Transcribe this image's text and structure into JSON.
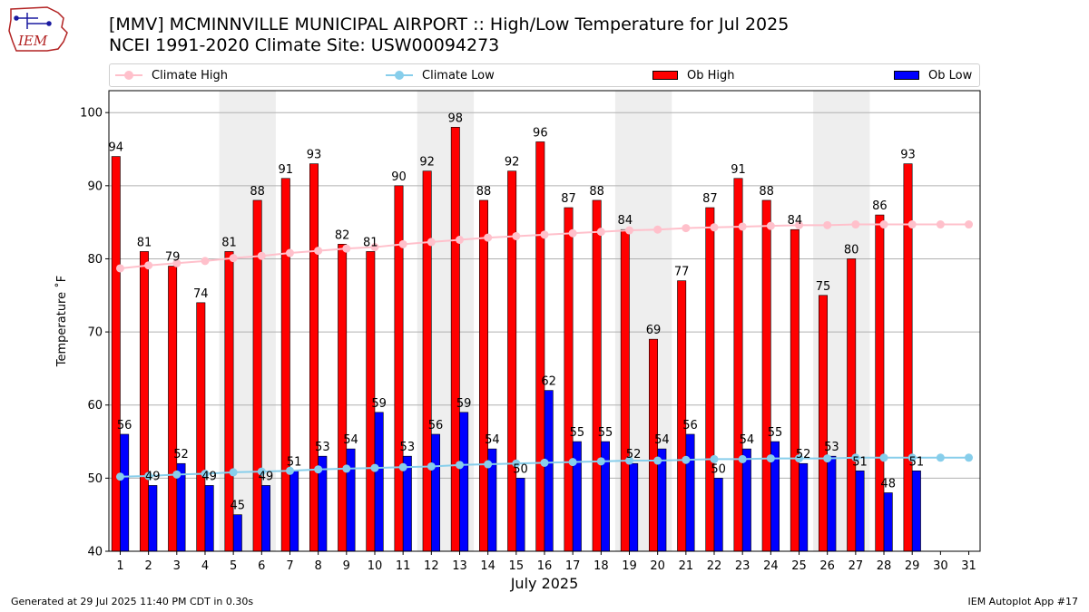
{
  "header": {
    "logo_text": "IEM",
    "title_line1": "[MMV] MCMINNVILLE MUNICIPAL AIRPORT :: High/Low Temperature for Jul 2025",
    "title_line2": "NCEI 1991-2020 Climate Site: USW00094273"
  },
  "footer": {
    "generated": "Generated at 29 Jul 2025 11:40 PM CDT in 0.30s",
    "app": "IEM Autoplot App #17"
  },
  "colors": {
    "ob_high": "#ff0000",
    "ob_low": "#0000ff",
    "climate_high": "#ffc0cb",
    "climate_low": "#87ceeb",
    "weekend_shade": "#eeeeee",
    "grid": "#b0b0b0"
  },
  "chart_data": {
    "type": "bar",
    "xlabel": "July 2025",
    "ylabel": "Temperature ˚F",
    "ylim": [
      40,
      103
    ],
    "yticks": [
      40,
      50,
      60,
      70,
      80,
      90,
      100
    ],
    "grid": "horizontal",
    "legend_position": "top",
    "categories": [
      "1",
      "2",
      "3",
      "4",
      "5",
      "6",
      "7",
      "8",
      "9",
      "10",
      "11",
      "12",
      "13",
      "14",
      "15",
      "16",
      "17",
      "18",
      "19",
      "20",
      "21",
      "22",
      "23",
      "24",
      "25",
      "26",
      "27",
      "28",
      "29",
      "30",
      "31"
    ],
    "shaded_days": [
      [
        5,
        6
      ],
      [
        12,
        13
      ],
      [
        19,
        20
      ],
      [
        26,
        27
      ]
    ],
    "series": [
      {
        "name": "Climate High",
        "kind": "line",
        "values": [
          78.7,
          79.1,
          79.4,
          79.7,
          80.1,
          80.4,
          80.8,
          81.1,
          81.4,
          81.6,
          82.0,
          82.3,
          82.6,
          82.9,
          83.1,
          83.3,
          83.5,
          83.7,
          83.9,
          84.0,
          84.2,
          84.3,
          84.4,
          84.5,
          84.6,
          84.6,
          84.7,
          84.7,
          84.7,
          84.7,
          84.7
        ]
      },
      {
        "name": "Climate Low",
        "kind": "line",
        "values": [
          50.2,
          50.3,
          50.5,
          50.6,
          50.8,
          50.9,
          51.0,
          51.2,
          51.3,
          51.4,
          51.5,
          51.6,
          51.8,
          51.9,
          52.0,
          52.1,
          52.2,
          52.3,
          52.4,
          52.4,
          52.5,
          52.6,
          52.6,
          52.7,
          52.7,
          52.7,
          52.8,
          52.8,
          52.8,
          52.8,
          52.8
        ]
      },
      {
        "name": "Ob High",
        "kind": "bar",
        "values": [
          94,
          81,
          79,
          74,
          81,
          88,
          91,
          93,
          82,
          81,
          90,
          92,
          98,
          88,
          92,
          96,
          87,
          88,
          84,
          69,
          77,
          87,
          91,
          88,
          84,
          75,
          80,
          86,
          93,
          null,
          null
        ]
      },
      {
        "name": "Ob Low",
        "kind": "bar",
        "values": [
          56,
          49,
          52,
          49,
          45,
          49,
          51,
          53,
          54,
          59,
          53,
          56,
          59,
          54,
          50,
          62,
          55,
          55,
          52,
          54,
          56,
          50,
          54,
          55,
          52,
          53,
          51,
          48,
          51,
          null,
          null
        ]
      }
    ]
  }
}
